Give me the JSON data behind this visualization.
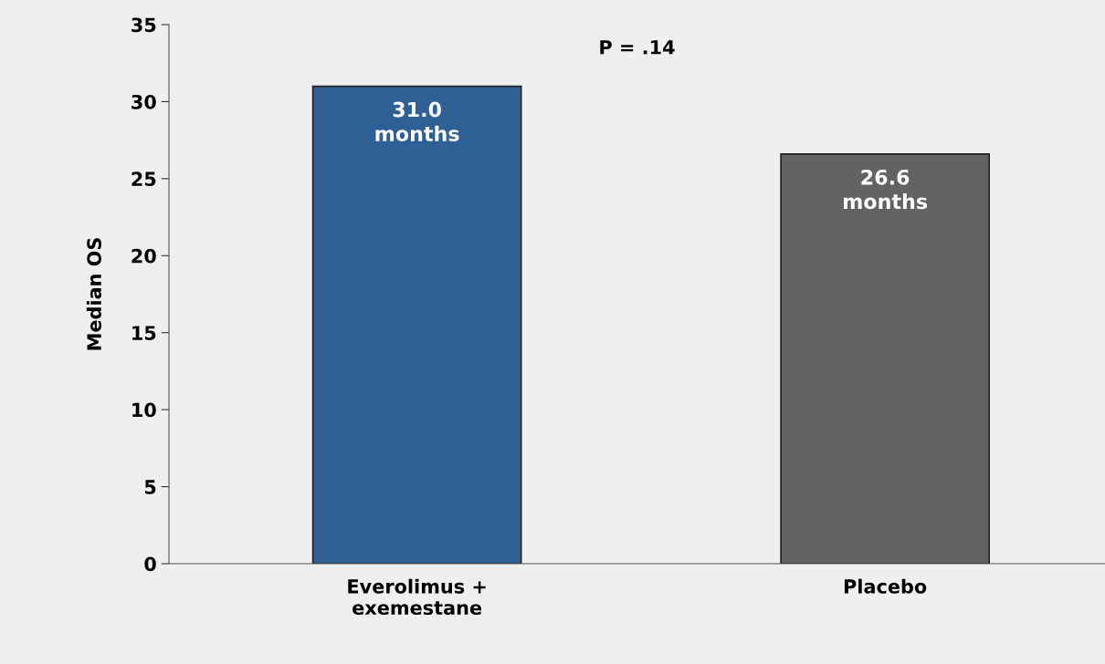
{
  "chart_data": {
    "type": "bar",
    "ylabel": "Median OS",
    "categories": [
      "Everolimus +\nexemestane",
      "Placebo"
    ],
    "values": [
      31.0,
      26.6
    ],
    "colors": [
      "#2e6096",
      "#636363"
    ],
    "value_labels": [
      "31.0\nmonths",
      "26.6\nmonths"
    ],
    "annotations": [
      "P = .14"
    ],
    "ylim": [
      0,
      35
    ],
    "yticks": [
      0,
      5,
      10,
      15,
      20,
      25,
      30,
      35
    ],
    "grid": false,
    "legend": false
  }
}
